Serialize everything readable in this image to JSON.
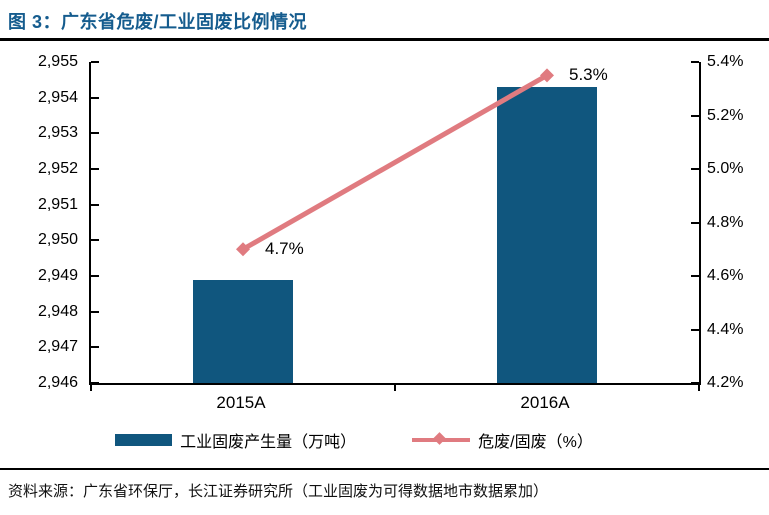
{
  "title": "图 3：广东省危废/工业固废比例情况",
  "source": "资料来源：广东省环保厅，长江证券研究所（工业固废为可得数据地市数据累加）",
  "colors": {
    "title_text": "#155c8e",
    "bar_fill": "#10567e",
    "line_stroke": "#e07b80",
    "axis": "#000000"
  },
  "chart_data": {
    "type": "bar",
    "combo": "bar + line, dual y-axes",
    "categories": [
      "2015A",
      "2016A"
    ],
    "series": [
      {
        "name": "工业固废产生量（万吨）",
        "render": "bar",
        "axis": "left",
        "values": [
          2948.9,
          2954.3
        ],
        "color": "#10567e"
      },
      {
        "name": "危废/固废（%）",
        "render": "line",
        "axis": "right",
        "values": [
          4.7,
          5.35
        ],
        "point_labels": [
          "4.7%",
          "5.3%"
        ],
        "marker": "diamond",
        "color": "#e07b80"
      }
    ],
    "left_axis": {
      "min": 2946,
      "max": 2955,
      "tick_step": 1,
      "tick_labels_top_to_bottom": [
        "2,955",
        "2,954",
        "2,953",
        "2,952",
        "2,951",
        "2,950",
        "2,949",
        "2,948",
        "2,947",
        "2,946"
      ]
    },
    "right_axis": {
      "min": 4.2,
      "max": 5.4,
      "tick_step": 0.2,
      "tick_labels_top_to_bottom": [
        "5.4%",
        "5.2%",
        "5.0%",
        "4.8%",
        "4.6%",
        "4.4%",
        "4.2%"
      ]
    },
    "grid": false,
    "legend_position": "bottom"
  }
}
